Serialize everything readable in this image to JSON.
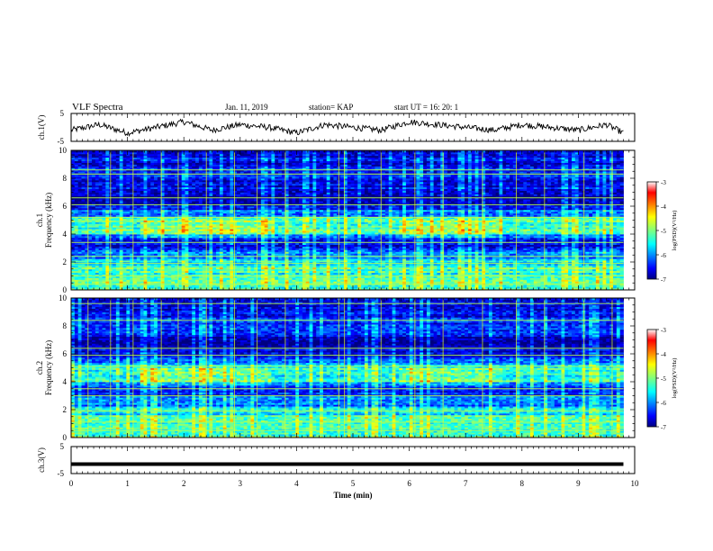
{
  "header": {
    "title": "VLF Spectra",
    "date": "Jan. 11, 2019",
    "station": "station= KAP",
    "start": "start UT =  16: 20: 1"
  },
  "chart_data": [
    {
      "type": "line",
      "panel": "ch1-voltage",
      "ylabel": "ch.1(V)",
      "ylim": [
        -5,
        5
      ],
      "yticks": [
        "5",
        "-5"
      ],
      "xlim": [
        0,
        10
      ],
      "series": [
        {
          "x": [
            0,
            0.5,
            1,
            1.5,
            2,
            2.5,
            3,
            3.5,
            4,
            4.5,
            5,
            5.5,
            6,
            6.5,
            7,
            7.5,
            8,
            8.5,
            9,
            9.5,
            9.8
          ],
          "y": [
            -1,
            1,
            -2,
            0,
            2,
            -1,
            1,
            0,
            -2,
            1,
            0,
            -1,
            2,
            1,
            0,
            -1,
            1,
            0,
            -1,
            1,
            -2
          ],
          "color": "#000000"
        }
      ]
    },
    {
      "type": "heatmap",
      "panel": "ch1-spectrogram",
      "ylabel": "ch.1\nFrequency (kHz)",
      "ylim": [
        0,
        10
      ],
      "yticks": [
        "0",
        "2",
        "4",
        "6",
        "8",
        "10"
      ],
      "xlim": [
        0,
        10
      ],
      "data_xmax": 9.8,
      "colorbar": {
        "label": "log(PSD)(V²/Hz)",
        "range": [
          -7,
          -3
        ],
        "ticks": [
          "-3",
          "-4",
          "-5",
          "-6",
          "-7"
        ],
        "colormap": "jet"
      }
    },
    {
      "type": "heatmap",
      "panel": "ch2-spectrogram",
      "ylabel": "ch.2\nFrequency (kHz)",
      "ylim": [
        0,
        10
      ],
      "yticks": [
        "0",
        "2",
        "4",
        "6",
        "8",
        "10"
      ],
      "xlim": [
        0,
        10
      ],
      "data_xmax": 9.8,
      "colorbar": {
        "label": "log(PSD)(V²/Hz)",
        "range": [
          -7,
          -3
        ],
        "ticks": [
          "-3",
          "-4",
          "-5",
          "-6",
          "-7"
        ],
        "colormap": "jet"
      }
    },
    {
      "type": "line",
      "panel": "ch3-voltage",
      "ylabel": "ch.3(V)",
      "ylim": [
        -5,
        5
      ],
      "yticks": [
        "5",
        "-5"
      ],
      "xlim": [
        0,
        10
      ],
      "xlabel": "Time (min)",
      "xticks": [
        "0",
        "1",
        "2",
        "3",
        "4",
        "5",
        "6",
        "7",
        "8",
        "9",
        "10"
      ],
      "series": [
        {
          "x": [
            0,
            9.8
          ],
          "y": [
            -1.5,
            -1.5
          ],
          "color": "#000000"
        }
      ]
    }
  ]
}
